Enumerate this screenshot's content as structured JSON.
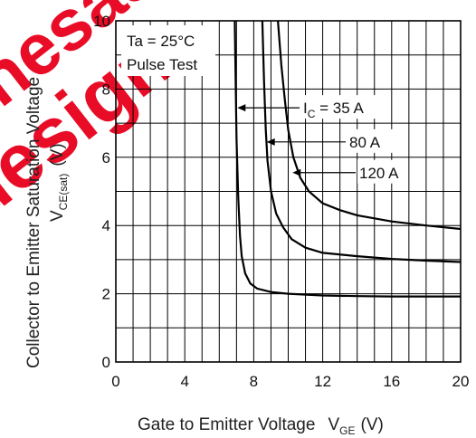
{
  "chart_data": {
    "type": "line",
    "xlabel": "Gate to Emitter Voltage",
    "xlabel_symbol": "V",
    "xlabel_sub": "GE",
    "xlabel_unit": "(V)",
    "ylabel_line1": "Collector to Emitter Saturation Voltage",
    "ylabel_symbol": "V",
    "ylabel_sub": "CE(sat)",
    "ylabel_unit": "(V)",
    "xlim": [
      0,
      20
    ],
    "ylim": [
      0,
      10
    ],
    "xticks": [
      "0",
      "4",
      "8",
      "12",
      "16",
      "20"
    ],
    "yticks": [
      "0",
      "2",
      "4",
      "6",
      "8",
      "10"
    ],
    "grid": true,
    "conditions": [
      "Ta = 25°C",
      "Pulse Test"
    ],
    "series": [
      {
        "name": "IC = 35 A",
        "label_prefix": "I",
        "label_sub": "C",
        "label_suffix": " = 35 A",
        "x": [
          6.9,
          7.0,
          7.1,
          7.2,
          7.3,
          7.5,
          7.8,
          8.2,
          9.0,
          10.0,
          12.0,
          14.0,
          16.0,
          18.0,
          20.0
        ],
        "y": [
          10.0,
          6.5,
          4.8,
          3.7,
          3.1,
          2.6,
          2.3,
          2.15,
          2.05,
          2.0,
          1.95,
          1.93,
          1.92,
          1.92,
          1.92
        ]
      },
      {
        "name": "80 A",
        "label_prefix": "80 A",
        "label_sub": "",
        "label_suffix": "",
        "x": [
          8.5,
          8.6,
          8.7,
          8.8,
          9.0,
          9.3,
          9.7,
          10.2,
          11.0,
          12.0,
          14.0,
          16.0,
          18.0,
          20.0
        ],
        "y": [
          10.0,
          8.2,
          6.8,
          5.9,
          5.0,
          4.35,
          3.95,
          3.6,
          3.35,
          3.2,
          3.1,
          3.02,
          2.97,
          2.93
        ]
      },
      {
        "name": "120 A",
        "label_prefix": "120 A",
        "label_sub": "",
        "label_suffix": "",
        "x": [
          9.4,
          9.6,
          9.8,
          10.0,
          10.3,
          10.7,
          11.2,
          12.0,
          13.0,
          14.0,
          16.0,
          18.0,
          20.0
        ],
        "y": [
          10.0,
          8.7,
          7.7,
          6.8,
          6.0,
          5.4,
          5.0,
          4.65,
          4.45,
          4.3,
          4.12,
          4.0,
          3.9
        ]
      }
    ]
  },
  "watermark": "Renesas design"
}
